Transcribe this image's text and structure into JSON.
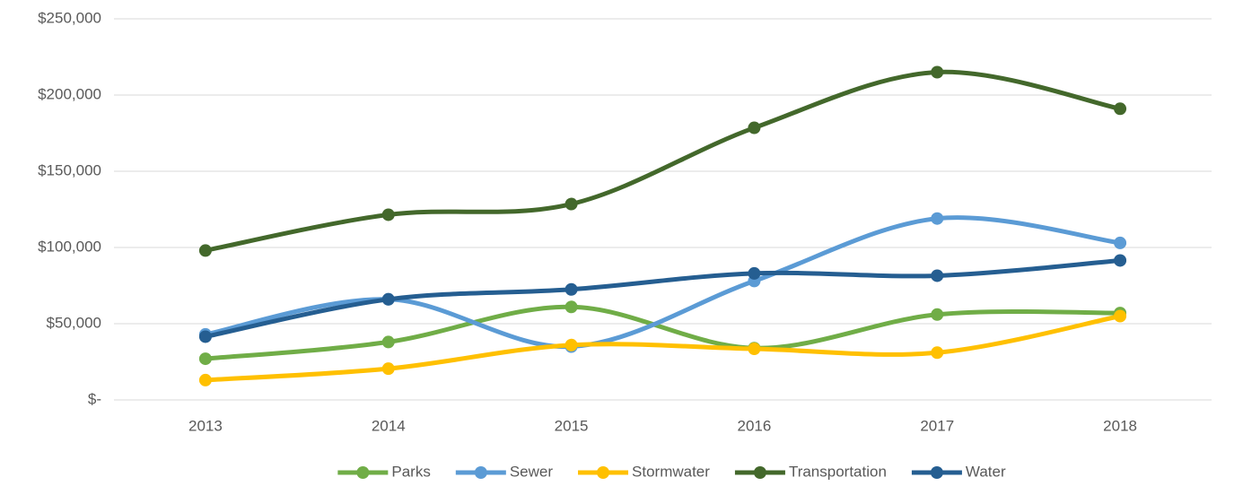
{
  "chart_data": {
    "type": "line",
    "categories": [
      "2013",
      "2014",
      "2015",
      "2016",
      "2017",
      "2018"
    ],
    "series": [
      {
        "name": "Parks",
        "color": "#70ad47",
        "values": [
          27000,
          38000,
          61000,
          34000,
          56000,
          57000
        ]
      },
      {
        "name": "Sewer",
        "color": "#5b9bd5",
        "values": [
          43000,
          66000,
          35000,
          78000,
          119000,
          103000
        ]
      },
      {
        "name": "Stormwater",
        "color": "#ffc000",
        "values": [
          13000,
          20500,
          36000,
          33500,
          31000,
          55000
        ]
      },
      {
        "name": "Transportation",
        "color": "#43682b",
        "values": [
          98000,
          121500,
          128500,
          178500,
          215000,
          191000
        ]
      },
      {
        "name": "Water",
        "color": "#255e91",
        "values": [
          41500,
          66000,
          72500,
          83000,
          81500,
          91500
        ]
      }
    ],
    "ylim": [
      0,
      250000
    ],
    "yticks": [
      {
        "value": 0,
        "label": "$-"
      },
      {
        "value": 50000,
        "label": "$50,000"
      },
      {
        "value": 100000,
        "label": "$100,000"
      },
      {
        "value": 150000,
        "label": "$150,000"
      },
      {
        "value": 200000,
        "label": "$200,000"
      },
      {
        "value": 250000,
        "label": "$250,000"
      }
    ],
    "grid": true,
    "legend": "bottom"
  }
}
